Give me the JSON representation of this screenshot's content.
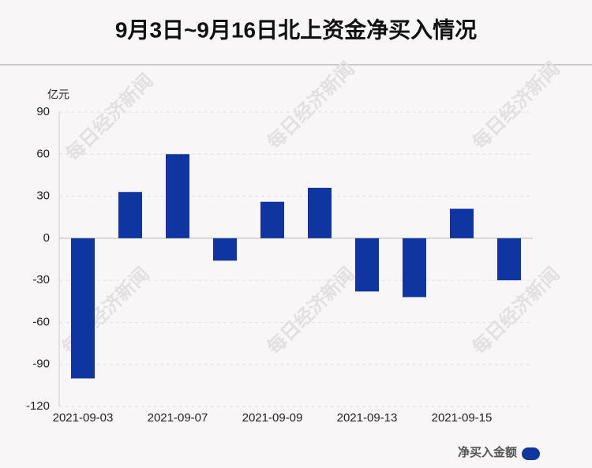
{
  "chart_data": {
    "type": "bar",
    "title": "9月3日~9月16日北上资金净买入情况",
    "unit": "亿元",
    "watermark": "每日经济新闻",
    "categories": [
      "2021-09-03",
      null,
      "2021-09-07",
      null,
      "2021-09-09",
      null,
      "2021-09-13",
      null,
      "2021-09-15",
      null
    ],
    "series": [
      {
        "name": "净买入金额",
        "color": "#0f35a0",
        "values": [
          -100,
          33,
          60,
          -16,
          26,
          36,
          -38,
          -42,
          21,
          -30
        ]
      }
    ],
    "ylim": [
      -120,
      90
    ],
    "yticks": [
      -120,
      -90,
      -60,
      -30,
      0,
      30,
      60,
      90
    ],
    "grid": true
  }
}
